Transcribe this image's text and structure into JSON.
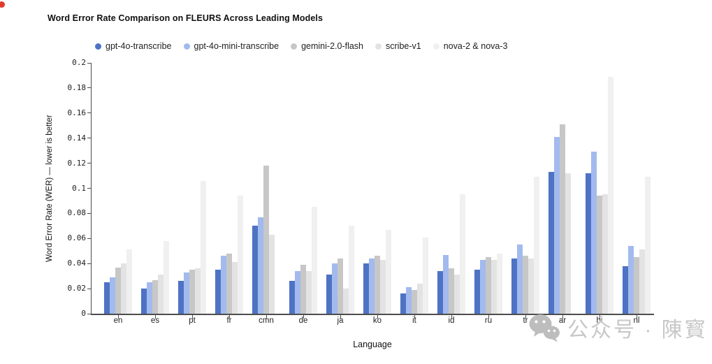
{
  "title": "Word Error Rate Comparison on FLEURS Across Leading Models",
  "watermark": {
    "icon": "wechat-icon",
    "text": "公众号 · 陳寳",
    "color": "#c7c7c7"
  },
  "chart_data": {
    "type": "bar",
    "title": "Word Error Rate Comparison on FLEURS Across Leading Models",
    "xlabel": "Language",
    "ylabel": "Word Error Rate (WER) — lower is better",
    "ylim": [
      0,
      0.2
    ],
    "ytick_labels": [
      "0",
      "0.02",
      "0.04",
      "0.06",
      "0.08",
      "0.1",
      "0.12",
      "0.14",
      "0.16",
      "0.18",
      "0.2"
    ],
    "grid": false,
    "legend_position": "top",
    "categories": [
      "en",
      "es",
      "pt",
      "fr",
      "cmn",
      "de",
      "ja",
      "ko",
      "it",
      "id",
      "ru",
      "tr",
      "ar",
      "hi",
      "nl"
    ],
    "series": [
      {
        "name": "gpt-4o-transcribe",
        "color": "#4e73c4",
        "values": [
          0.025,
          0.02,
          0.026,
          0.035,
          0.07,
          0.026,
          0.031,
          0.04,
          0.016,
          0.034,
          0.035,
          0.044,
          0.113,
          0.112,
          0.038
        ]
      },
      {
        "name": "gpt-4o-mini-transcribe",
        "color": "#a2baee",
        "values": [
          0.029,
          0.025,
          0.033,
          0.046,
          0.077,
          0.034,
          0.04,
          0.044,
          0.021,
          0.047,
          0.043,
          0.055,
          0.141,
          0.129,
          0.054
        ]
      },
      {
        "name": "gemini-2.0-flash",
        "color": "#c7c7c7",
        "values": [
          0.037,
          0.027,
          0.035,
          0.048,
          0.118,
          0.039,
          0.044,
          0.046,
          0.019,
          0.036,
          0.045,
          0.046,
          0.151,
          0.094,
          0.045
        ]
      },
      {
        "name": "scribe-v1",
        "color": "#e3e3e3",
        "values": [
          0.04,
          0.031,
          0.036,
          0.041,
          0.063,
          0.034,
          0.02,
          0.043,
          0.024,
          0.031,
          0.043,
          0.044,
          0.112,
          0.095,
          0.051
        ]
      },
      {
        "name": "nova-2 & nova-3",
        "color": "#f0f0f0",
        "values": [
          0.051,
          0.058,
          0.106,
          0.094,
          null,
          0.085,
          0.07,
          0.067,
          0.061,
          0.095,
          0.048,
          0.109,
          null,
          0.189,
          0.109
        ]
      }
    ]
  }
}
